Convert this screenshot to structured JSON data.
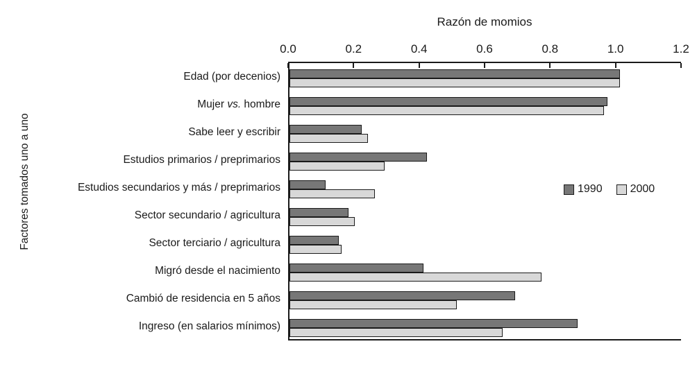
{
  "chart_data": {
    "type": "bar",
    "orientation": "horizontal",
    "title": "Razón de momios",
    "ylabel": "Factores tomados uno a uno",
    "xlim": [
      0,
      1.2
    ],
    "xticks": [
      "0.0",
      "0.2",
      "0.4",
      "0.6",
      "0.8",
      "1.0",
      "1.2"
    ],
    "xtick_values": [
      0,
      0.2,
      0.4,
      0.6,
      0.8,
      1.0,
      1.2
    ],
    "grid": false,
    "legend_position": "middle-right",
    "italic_token": "vs.",
    "categories": [
      "Edad (por decenios)",
      "Mujer vs. hombre",
      "Sabe leer y escribir",
      "Estudios primarios / preprimarios",
      "Estudios secundarios y más / preprimarios",
      "Sector secundario / agricultura",
      "Sector terciario / agricultura",
      "Migró desde el nacimiento",
      "Cambió de residencia en 5 años",
      "Ingreso (en salarios mínimos)"
    ],
    "series": [
      {
        "name": "1990",
        "color": "#777777",
        "values": [
          1.01,
          0.97,
          0.22,
          0.42,
          0.11,
          0.18,
          0.15,
          0.41,
          0.69,
          0.88
        ]
      },
      {
        "name": "2000",
        "color": "#d8d8d8",
        "values": [
          1.01,
          0.96,
          0.24,
          0.29,
          0.26,
          0.2,
          0.16,
          0.77,
          0.51,
          0.65
        ]
      }
    ]
  },
  "colors": {
    "background": "#ffffff",
    "text": "#1a1a1a",
    "axis": "#1a1a1a",
    "bar_border": "#1a1a1a",
    "bar_1990": "#777777",
    "bar_2000": "#d8d8d8"
  }
}
